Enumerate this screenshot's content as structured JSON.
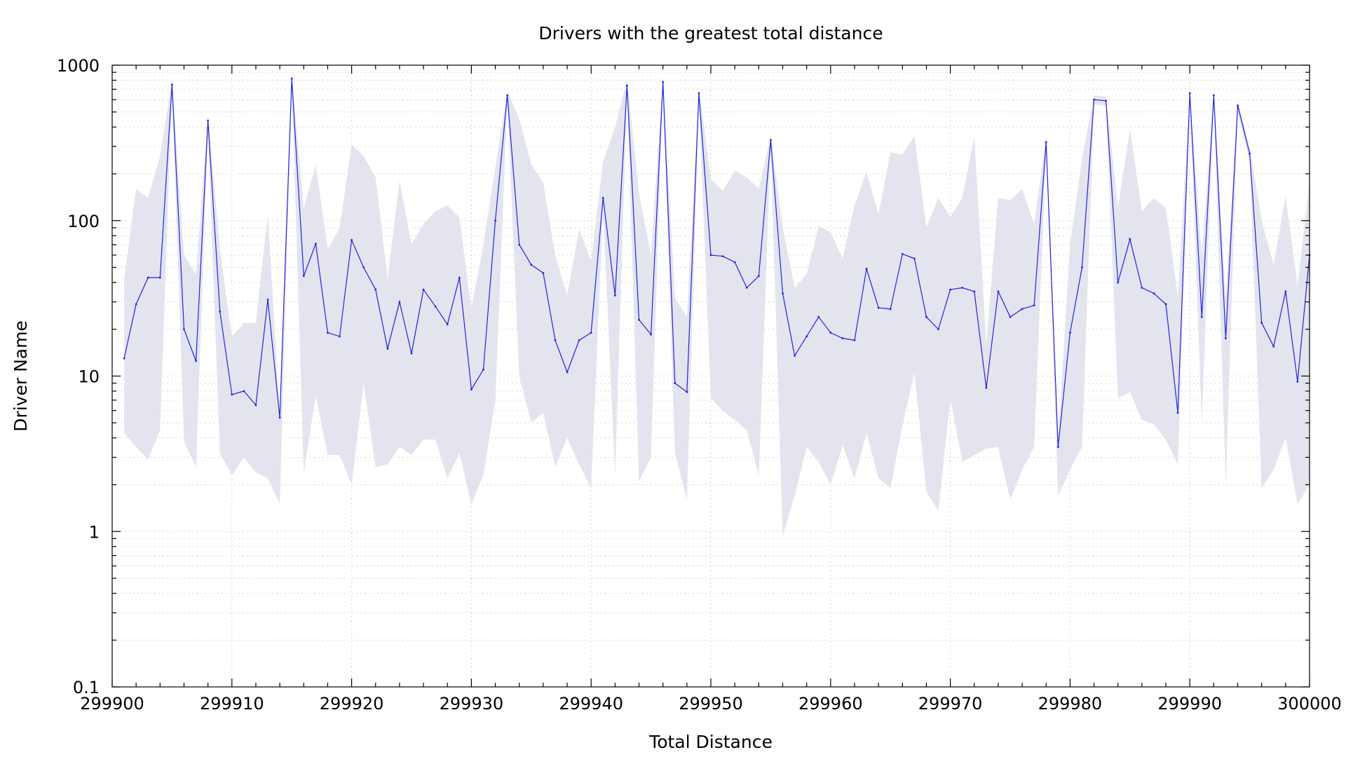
{
  "chart_data": {
    "type": "line",
    "title": "Drivers with the greatest total distance",
    "xlabel": "Total Distance",
    "ylabel": "Driver Name",
    "xlim": [
      299900,
      300000
    ],
    "ylim": [
      0.1,
      1000
    ],
    "y_scale": "log",
    "grid": true,
    "x_ticks": [
      299900,
      299910,
      299920,
      299930,
      299940,
      299950,
      299960,
      299970,
      299980,
      299990,
      300000
    ],
    "x_tick_labels": [
      "299900",
      "299910",
      "299920",
      "299930",
      "299940",
      "299950",
      "299960",
      "299970",
      "299980",
      "299990",
      "300000"
    ],
    "y_ticks": [
      0.1,
      1,
      10,
      100,
      1000
    ],
    "y_tick_labels": [
      "0.1",
      "1",
      "10",
      "100",
      "1000"
    ],
    "colors": {
      "line": "#2222dd",
      "band": "#e3e4ee",
      "grid": "#d4d4d4",
      "frame": "#000000"
    },
    "series": [
      {
        "x": [
          299901,
          299902,
          299903,
          299904,
          299905,
          299906,
          299907,
          299908,
          299909,
          299910,
          299911,
          299912,
          299913,
          299914,
          299915,
          299916,
          299917,
          299918,
          299919,
          299920,
          299921,
          299922,
          299923,
          299924,
          299925,
          299926,
          299927,
          299928,
          299929,
          299930,
          299931,
          299932,
          299933,
          299934,
          299935,
          299936,
          299937,
          299938,
          299939,
          299940,
          299941,
          299942,
          299943,
          299944,
          299945,
          299946,
          299947,
          299948,
          299949,
          299950,
          299951,
          299952,
          299953,
          299954,
          299955,
          299956,
          299957,
          299958,
          299959,
          299960,
          299961,
          299962,
          299963,
          299964,
          299965,
          299966,
          299967,
          299968,
          299969,
          299970,
          299971,
          299972,
          299973,
          299974,
          299975,
          299976,
          299977,
          299978,
          299979,
          299980,
          299981,
          299982,
          299983,
          299984,
          299985,
          299986,
          299987,
          299988,
          299989,
          299990,
          299991,
          299992,
          299993,
          299994,
          299995,
          299996,
          299997,
          299998,
          299999,
          300000
        ],
        "y": [
          13,
          29,
          43,
          43,
          750,
          20,
          12.5,
          440,
          26,
          7.6,
          8,
          6.5,
          31,
          5.4,
          820,
          44,
          71,
          19,
          18,
          75,
          50,
          36,
          15,
          30,
          14,
          36,
          28,
          21.5,
          43,
          8.2,
          11,
          100,
          640,
          70,
          52,
          46,
          17,
          10.6,
          17,
          19,
          140,
          33,
          740,
          23,
          18.5,
          780,
          9,
          7.9,
          660,
          60,
          59,
          54,
          37,
          44,
          330,
          34,
          13.5,
          18,
          24,
          19,
          17.5,
          17,
          49,
          27.5,
          27,
          61,
          57,
          24,
          20,
          36,
          37,
          35,
          8.4,
          35,
          24,
          27,
          28.5,
          320,
          3.5,
          19,
          50,
          600,
          590,
          40,
          76,
          37,
          34,
          29,
          5.8,
          660,
          24,
          640,
          17.5,
          550,
          270,
          22,
          15.5,
          35,
          9.2,
          60
        ],
        "lower": [
          4.3,
          3.5,
          2.9,
          4.5,
          700,
          3.8,
          2.6,
          380,
          3.2,
          2.3,
          3,
          2.4,
          2.2,
          1.5,
          760,
          2.4,
          7.5,
          3.1,
          3.1,
          2,
          9,
          2.6,
          2.7,
          3.5,
          3.1,
          3.9,
          3.9,
          2.2,
          3.2,
          1.5,
          2.3,
          7,
          600,
          10,
          5,
          5.8,
          2.6,
          4,
          2.7,
          1.9,
          120,
          2.3,
          680,
          2.1,
          3,
          720,
          3.2,
          1.6,
          600,
          7.2,
          6,
          5.2,
          4.5,
          2.3,
          300,
          0.93,
          1.7,
          3.5,
          2.8,
          2,
          3.6,
          2.2,
          4.3,
          2.2,
          1.9,
          4.8,
          10.5,
          1.8,
          1.35,
          7.2,
          2.8,
          3.1,
          3.4,
          3.5,
          1.6,
          2.5,
          3.5,
          290,
          1.7,
          2.5,
          3.5,
          560,
          550,
          7.2,
          7.9,
          5.2,
          4.9,
          3.9,
          2.7,
          620,
          5,
          600,
          2,
          500,
          240,
          1.9,
          2.5,
          4,
          1.5,
          2
        ],
        "upper": [
          42,
          160,
          140,
          260,
          800,
          60,
          45,
          480,
          65,
          18,
          22,
          22,
          110,
          5.6,
          870,
          120,
          230,
          65,
          90,
          310,
          260,
          190,
          42,
          180,
          70,
          95,
          115,
          125,
          105,
          27,
          70,
          220,
          680,
          450,
          230,
          175,
          60,
          33,
          88,
          55,
          240,
          400,
          800,
          150,
          60,
          840,
          32,
          24,
          720,
          185,
          155,
          210,
          190,
          160,
          350,
          90,
          37,
          45,
          92,
          84,
          57,
          125,
          205,
          110,
          275,
          265,
          350,
          90,
          140,
          105,
          140,
          350,
          16,
          140,
          135,
          160,
          95,
          350,
          3.8,
          70,
          250,
          640,
          630,
          120,
          390,
          115,
          140,
          120,
          32,
          700,
          60,
          680,
          32,
          600,
          300,
          100,
          52,
          145,
          38,
          180
        ]
      }
    ]
  }
}
